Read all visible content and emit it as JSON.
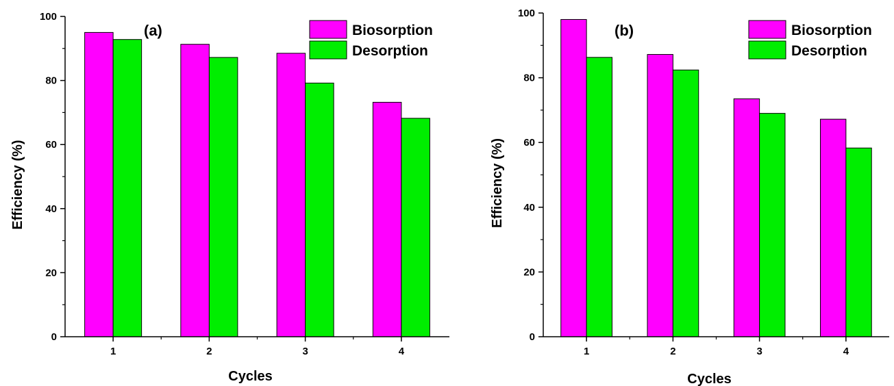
{
  "chart_data": [
    {
      "type": "bar",
      "panel_label": "(a)",
      "categories": [
        "1",
        "2",
        "3",
        "4"
      ],
      "series": [
        {
          "name": "Biosorption",
          "values": [
            95,
            91.3,
            88.5,
            73.2
          ]
        },
        {
          "name": "Desorption",
          "values": [
            92.8,
            87.2,
            79.2,
            68.2
          ]
        }
      ],
      "xlabel": "Cycles",
      "ylabel": "Efficiency (%)",
      "ylim": [
        0,
        100
      ],
      "yticks": [
        "0",
        "20",
        "40",
        "60",
        "80",
        "100"
      ],
      "legend_position": "top-right"
    },
    {
      "type": "bar",
      "panel_label": "(b)",
      "categories": [
        "1",
        "2",
        "3",
        "4"
      ],
      "series": [
        {
          "name": "Biosorption",
          "values": [
            98,
            87.2,
            73.5,
            67.2
          ]
        },
        {
          "name": "Desorption",
          "values": [
            86.3,
            82.4,
            69,
            58.3
          ]
        }
      ],
      "xlabel": "Cycles",
      "ylabel": "Efficiency (%)",
      "ylim": [
        0,
        100
      ],
      "yticks": [
        "0",
        "20",
        "40",
        "60",
        "80",
        "100"
      ],
      "legend_position": "top-right"
    }
  ],
  "colors": {
    "Biosorption": "#ff00ff",
    "Desorption": "#00ee00"
  }
}
